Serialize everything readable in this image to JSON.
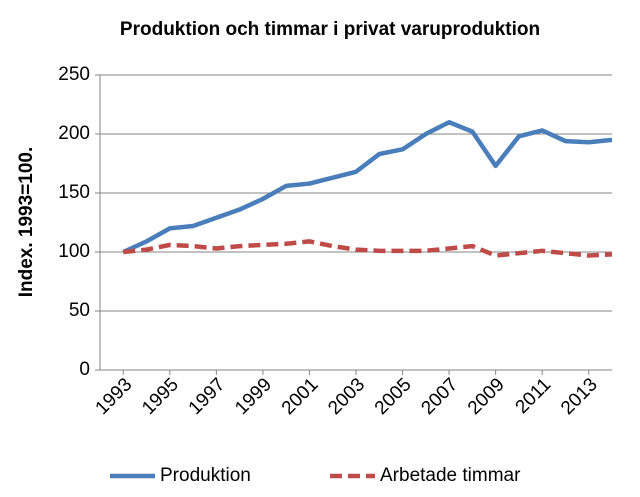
{
  "chart_data": {
    "type": "line",
    "title": "Produktion och timmar i privat varuproduktion",
    "y_label": "Index. 1993=100.",
    "x": [
      1993,
      1994,
      1995,
      1996,
      1997,
      1998,
      1999,
      2000,
      2001,
      2002,
      2003,
      2004,
      2005,
      2006,
      2007,
      2008,
      2009,
      2010,
      2011,
      2012,
      2013,
      2014
    ],
    "xlim": [
      1992,
      2014
    ],
    "xticks": [
      1993,
      1995,
      1997,
      1999,
      2001,
      2003,
      2005,
      2007,
      2009,
      2011,
      2013
    ],
    "ylim": [
      0,
      250
    ],
    "yticks": [
      0,
      50,
      100,
      150,
      200,
      250
    ],
    "grid": true,
    "legend": "bottom",
    "series": [
      {
        "name": "Produktion",
        "color": "#4a7ebb",
        "dashed": false,
        "values": [
          100,
          109,
          120,
          122,
          129,
          136,
          145,
          156,
          158,
          163,
          168,
          183,
          187,
          200,
          210,
          202,
          173,
          198,
          203,
          194,
          193,
          195
        ]
      },
      {
        "name": "Arbetade timmar",
        "color": "#be4b48",
        "dashed": true,
        "values": [
          100,
          102,
          106,
          105,
          103,
          105,
          106,
          107,
          109,
          105,
          102,
          101,
          101,
          101,
          103,
          105,
          97,
          99,
          101,
          99,
          97,
          98
        ]
      }
    ]
  }
}
